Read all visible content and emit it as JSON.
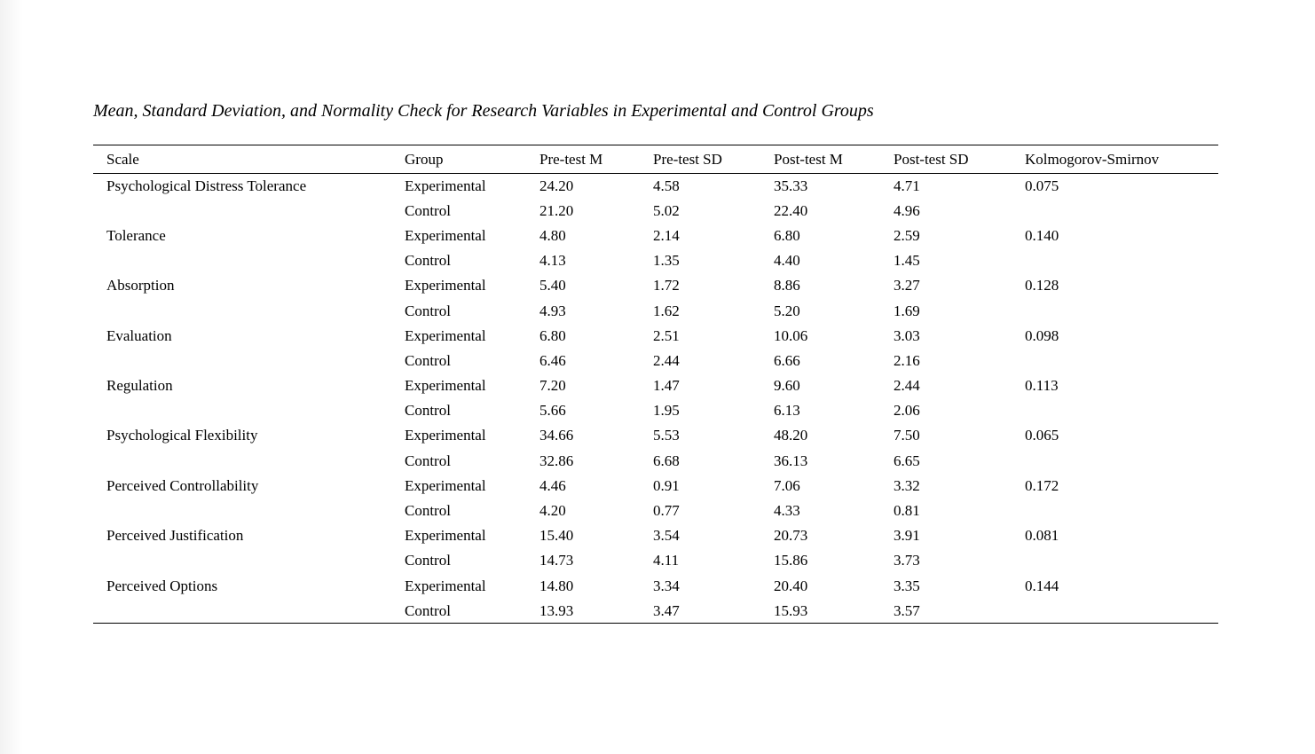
{
  "page": {
    "title": "Mean, Standard Deviation, and Normality Check for Research Variables in Experimental and Control Groups"
  },
  "table": {
    "columns": [
      "Scale",
      "Group",
      "Pre-test M",
      "Pre-test SD",
      "Post-test M",
      "Post-test SD",
      "Kolmogorov-Smirnov"
    ],
    "rows": [
      {
        "scale": "Psychological Distress Tolerance",
        "group": "Experimental",
        "pre_m": "24.20",
        "pre_sd": "4.58",
        "post_m": "35.33",
        "post_sd": "4.71",
        "ks": "0.075"
      },
      {
        "scale": "",
        "group": "Control",
        "pre_m": "21.20",
        "pre_sd": "5.02",
        "post_m": "22.40",
        "post_sd": "4.96",
        "ks": ""
      },
      {
        "scale": "Tolerance",
        "group": "Experimental",
        "pre_m": "4.80",
        "pre_sd": "2.14",
        "post_m": "6.80",
        "post_sd": "2.59",
        "ks": "0.140"
      },
      {
        "scale": "",
        "group": "Control",
        "pre_m": "4.13",
        "pre_sd": "1.35",
        "post_m": "4.40",
        "post_sd": "1.45",
        "ks": ""
      },
      {
        "scale": "Absorption",
        "group": "Experimental",
        "pre_m": "5.40",
        "pre_sd": "1.72",
        "post_m": "8.86",
        "post_sd": "3.27",
        "ks": "0.128"
      },
      {
        "scale": "",
        "group": "Control",
        "pre_m": "4.93",
        "pre_sd": "1.62",
        "post_m": "5.20",
        "post_sd": "1.69",
        "ks": ""
      },
      {
        "scale": "Evaluation",
        "group": "Experimental",
        "pre_m": "6.80",
        "pre_sd": "2.51",
        "post_m": "10.06",
        "post_sd": "3.03",
        "ks": "0.098"
      },
      {
        "scale": "",
        "group": "Control",
        "pre_m": "6.46",
        "pre_sd": "2.44",
        "post_m": "6.66",
        "post_sd": "2.16",
        "ks": ""
      },
      {
        "scale": "Regulation",
        "group": "Experimental",
        "pre_m": "7.20",
        "pre_sd": "1.47",
        "post_m": "9.60",
        "post_sd": "2.44",
        "ks": "0.113"
      },
      {
        "scale": "",
        "group": "Control",
        "pre_m": "5.66",
        "pre_sd": "1.95",
        "post_m": "6.13",
        "post_sd": "2.06",
        "ks": ""
      },
      {
        "scale": "Psychological Flexibility",
        "group": "Experimental",
        "pre_m": "34.66",
        "pre_sd": "5.53",
        "post_m": "48.20",
        "post_sd": "7.50",
        "ks": "0.065"
      },
      {
        "scale": "",
        "group": "Control",
        "pre_m": "32.86",
        "pre_sd": "6.68",
        "post_m": "36.13",
        "post_sd": "6.65",
        "ks": ""
      },
      {
        "scale": "Perceived Controllability",
        "group": "Experimental",
        "pre_m": "4.46",
        "pre_sd": "0.91",
        "post_m": "7.06",
        "post_sd": "3.32",
        "ks": "0.172"
      },
      {
        "scale": "",
        "group": "Control",
        "pre_m": "4.20",
        "pre_sd": "0.77",
        "post_m": "4.33",
        "post_sd": "0.81",
        "ks": ""
      },
      {
        "scale": "Perceived Justification",
        "group": "Experimental",
        "pre_m": "15.40",
        "pre_sd": "3.54",
        "post_m": "20.73",
        "post_sd": "3.91",
        "ks": "0.081"
      },
      {
        "scale": "",
        "group": "Control",
        "pre_m": "14.73",
        "pre_sd": "4.11",
        "post_m": "15.86",
        "post_sd": "3.73",
        "ks": ""
      },
      {
        "scale": "Perceived Options",
        "group": "Experimental",
        "pre_m": "14.80",
        "pre_sd": "3.34",
        "post_m": "20.40",
        "post_sd": "3.35",
        "ks": "0.144"
      },
      {
        "scale": "",
        "group": "Control",
        "pre_m": "13.93",
        "pre_sd": "3.47",
        "post_m": "15.93",
        "post_sd": "3.57",
        "ks": ""
      }
    ]
  }
}
